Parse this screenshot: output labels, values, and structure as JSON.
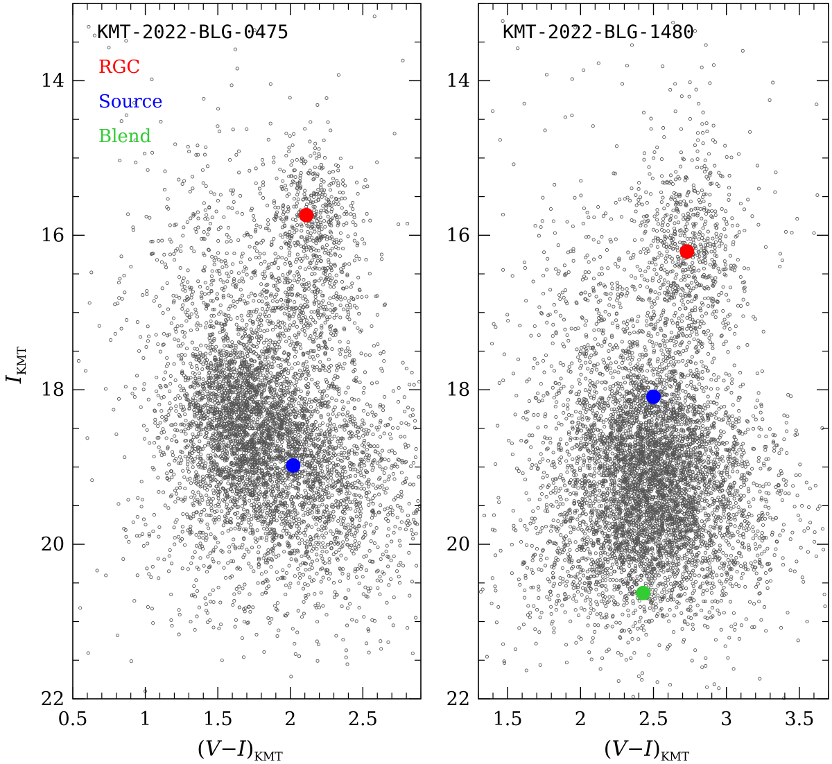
{
  "colors": {
    "rgc": "#ff0000",
    "source": "#0000ff",
    "blend": "#33cc33",
    "stars": "#555555"
  },
  "legend": [
    {
      "label": "RGC",
      "color": "#ff0000"
    },
    {
      "label": "Source",
      "color": "#0000ff"
    },
    {
      "label": "Blend",
      "color": "#33cc33"
    }
  ],
  "chart_data": [
    {
      "type": "scatter",
      "title": "KMT-2022-BLG-0475",
      "xlabel": "(V−I)",
      "xlabel_sub": "KMT",
      "ylabel": "I",
      "ylabel_sub": "KMT",
      "xlim": [
        0.5,
        2.9
      ],
      "ylim": [
        22,
        13.0
      ],
      "y_inverted": true,
      "xticks": [
        "0.5",
        "1",
        "1.5",
        "2",
        "2.5"
      ],
      "xtick_values": [
        0.5,
        1,
        1.5,
        2,
        2.5
      ],
      "yticks": [
        "14",
        "16",
        "18",
        "20",
        "22"
      ],
      "ytick_values": [
        14,
        16,
        18,
        20,
        22
      ],
      "field_stars": {
        "groups": [
          {
            "n": 2600,
            "cx": 1.82,
            "cy": 18.85,
            "sx": 0.32,
            "sy": 0.62
          },
          {
            "n": 900,
            "cx": 1.65,
            "cy": 18.1,
            "sx": 0.2,
            "sy": 0.45
          },
          {
            "n": 500,
            "cx": 2.15,
            "cy": 15.8,
            "sx": 0.18,
            "sy": 0.5
          },
          {
            "n": 450,
            "cx": 2.1,
            "cy": 17.0,
            "sx": 0.22,
            "sy": 0.55
          },
          {
            "n": 500,
            "cx": 1.45,
            "cy": 16.9,
            "sx": 0.28,
            "sy": 0.9
          },
          {
            "n": 700,
            "cx": 2.45,
            "cy": 19.4,
            "sx": 0.3,
            "sy": 0.8
          },
          {
            "n": 300,
            "cx": 1.7,
            "cy": 20.3,
            "sx": 0.5,
            "sy": 0.6
          },
          {
            "n": 150,
            "cx": 1.7,
            "cy": 16.5,
            "sx": 0.7,
            "sy": 2.0
          }
        ]
      },
      "markers": [
        {
          "name": "RGC",
          "x": 2.11,
          "y": 15.74,
          "color": "#ff0000"
        },
        {
          "name": "Source",
          "x": 2.02,
          "y": 18.98,
          "color": "#0000ff"
        }
      ],
      "show_legend": true,
      "show_ylabel": true
    },
    {
      "type": "scatter",
      "title": "KMT-2022-BLG-1480",
      "xlabel": "(V−I)",
      "xlabel_sub": "KMT",
      "ylabel": "",
      "xlim": [
        1.3,
        3.7
      ],
      "ylim": [
        22,
        13.0
      ],
      "y_inverted": true,
      "xticks": [
        "1.5",
        "2",
        "2.5",
        "3",
        "3.5"
      ],
      "xtick_values": [
        1.5,
        2,
        2.5,
        3,
        3.5
      ],
      "yticks": [
        "14",
        "16",
        "18",
        "20",
        "22"
      ],
      "ytick_values": [
        14,
        16,
        18,
        20,
        22
      ],
      "field_stars": {
        "groups": [
          {
            "n": 3200,
            "cx": 2.45,
            "cy": 19.4,
            "sx": 0.3,
            "sy": 0.7
          },
          {
            "n": 900,
            "cx": 2.5,
            "cy": 18.5,
            "sx": 0.25,
            "sy": 0.5
          },
          {
            "n": 650,
            "cx": 2.75,
            "cy": 16.3,
            "sx": 0.17,
            "sy": 0.7
          },
          {
            "n": 600,
            "cx": 2.2,
            "cy": 17.5,
            "sx": 0.3,
            "sy": 1.0
          },
          {
            "n": 700,
            "cx": 2.9,
            "cy": 19.6,
            "sx": 0.35,
            "sy": 0.8
          },
          {
            "n": 400,
            "cx": 2.1,
            "cy": 20.4,
            "sx": 0.4,
            "sy": 0.5
          },
          {
            "n": 250,
            "cx": 2.5,
            "cy": 16.5,
            "sx": 0.7,
            "sy": 2.0
          }
        ]
      },
      "markers": [
        {
          "name": "RGC",
          "x": 2.73,
          "y": 16.21,
          "color": "#ff0000"
        },
        {
          "name": "Source",
          "x": 2.5,
          "y": 18.09,
          "color": "#0000ff"
        },
        {
          "name": "Blend",
          "x": 2.43,
          "y": 20.63,
          "color": "#33cc33"
        }
      ],
      "show_legend": false,
      "show_ylabel": false
    }
  ]
}
